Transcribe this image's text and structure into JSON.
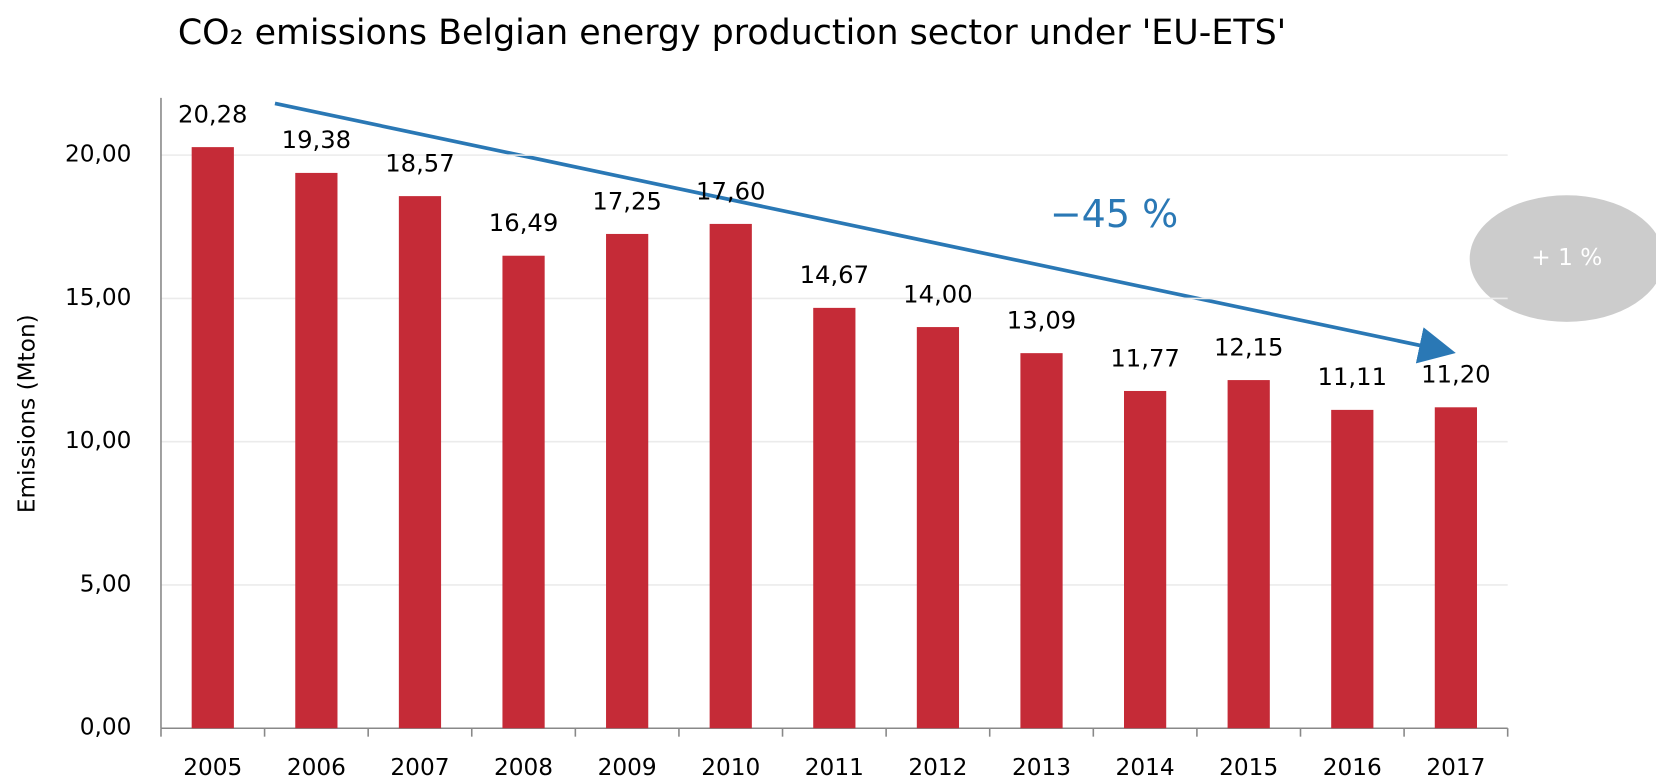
{
  "chart_data": {
    "type": "bar",
    "title": "CO₂ emissions Belgian energy production sector under 'EU-ETS'",
    "y_label": "Emissions (Mton)",
    "categories": [
      "2005",
      "2006",
      "2007",
      "2008",
      "2009",
      "2010",
      "2011",
      "2012",
      "2013",
      "2014",
      "2015",
      "2016",
      "2017"
    ],
    "values": [
      20.28,
      19.38,
      18.57,
      16.49,
      17.25,
      17.6,
      14.67,
      14.0,
      13.09,
      11.77,
      12.15,
      11.11,
      11.2
    ],
    "value_labels": [
      "20,28",
      "19,38",
      "18,57",
      "16,49",
      "17,25",
      "17,60",
      "14,67",
      "14,00",
      "13,09",
      "11,77",
      "12,15",
      "11,11",
      "11,20"
    ],
    "color": "#c52b37",
    "ylim": [
      0,
      22
    ],
    "yticks": [
      {
        "value": 0,
        "label": "0,00"
      },
      {
        "value": 5,
        "label": "5,00"
      },
      {
        "value": 10,
        "label": "10,00"
      },
      {
        "value": 15,
        "label": "15,00"
      },
      {
        "value": 20,
        "label": "20,00"
      }
    ],
    "grid": true,
    "annotations": [
      "−45 %",
      "+ 1 %"
    ]
  }
}
